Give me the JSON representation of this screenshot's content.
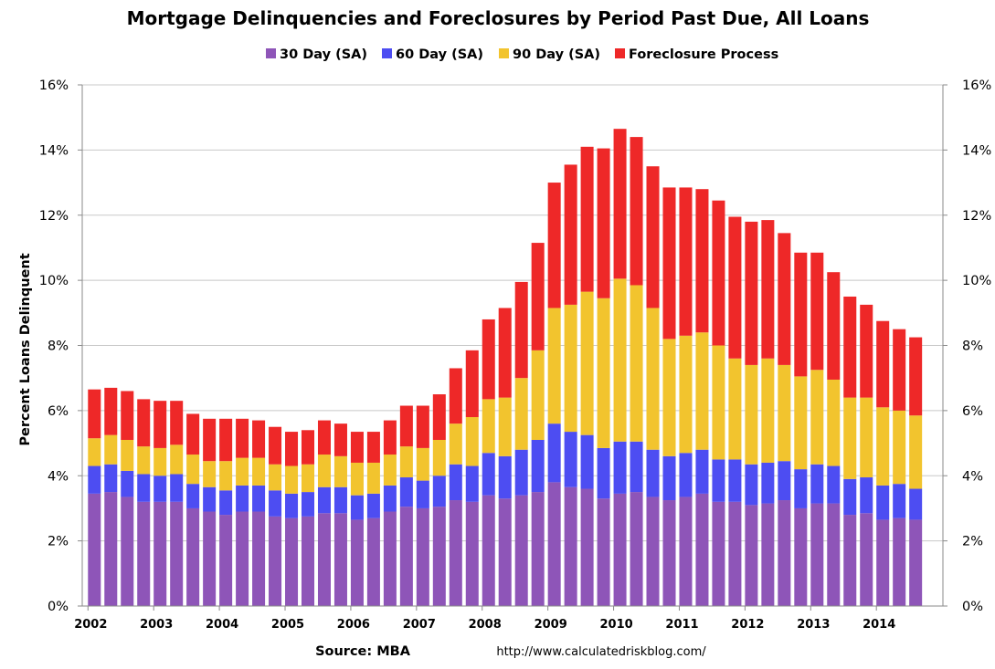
{
  "chart_data": {
    "type": "bar",
    "stacked": true,
    "title": "Mortgage Delinquencies and Foreclosures by Period Past Due, All Loans",
    "ylabel": "Percent Loans Delinquent",
    "xlabel": "",
    "ylim": [
      0,
      16
    ],
    "y_ticks": [
      "0%",
      "2%",
      "4%",
      "6%",
      "8%",
      "10%",
      "12%",
      "14%",
      "16%"
    ],
    "x_ticks": [
      "2002",
      "2003",
      "2004",
      "2005",
      "2006",
      "2007",
      "2008",
      "2009",
      "2010",
      "2011",
      "2012",
      "2013",
      "2014"
    ],
    "grid": true,
    "legend_position": "top",
    "series": [
      {
        "name": "30 Day (SA)",
        "color": "#8e55b8",
        "values": [
          3.45,
          3.5,
          3.35,
          3.2,
          3.2,
          3.2,
          3.0,
          2.9,
          2.8,
          2.9,
          2.9,
          2.75,
          2.7,
          2.75,
          2.85,
          2.85,
          2.65,
          2.7,
          2.9,
          3.05,
          3.0,
          3.05,
          3.25,
          3.2,
          3.4,
          3.3,
          3.4,
          3.5,
          3.8,
          3.65,
          3.6,
          3.3,
          3.45,
          3.5,
          3.35,
          3.25,
          3.35,
          3.45,
          3.2,
          3.2,
          3.1,
          3.15,
          3.25,
          3.0,
          3.15,
          3.15,
          2.8,
          2.85,
          2.65,
          2.7,
          2.65
        ]
      },
      {
        "name": "60 Day (SA)",
        "color": "#4d4df2",
        "values": [
          0.85,
          0.85,
          0.8,
          0.85,
          0.8,
          0.85,
          0.75,
          0.75,
          0.75,
          0.8,
          0.8,
          0.8,
          0.75,
          0.75,
          0.8,
          0.8,
          0.75,
          0.75,
          0.8,
          0.9,
          0.85,
          0.95,
          1.1,
          1.1,
          1.3,
          1.3,
          1.4,
          1.6,
          1.8,
          1.7,
          1.65,
          1.55,
          1.6,
          1.55,
          1.45,
          1.35,
          1.35,
          1.35,
          1.3,
          1.3,
          1.25,
          1.25,
          1.2,
          1.2,
          1.2,
          1.15,
          1.1,
          1.1,
          1.05,
          1.05,
          0.95
        ]
      },
      {
        "name": "90 Day (SA)",
        "color": "#f2c42e",
        "values": [
          0.85,
          0.9,
          0.95,
          0.85,
          0.85,
          0.9,
          0.9,
          0.8,
          0.9,
          0.85,
          0.85,
          0.8,
          0.85,
          0.85,
          1.0,
          0.95,
          1.0,
          0.95,
          0.95,
          0.95,
          1.0,
          1.1,
          1.25,
          1.5,
          1.65,
          1.8,
          2.2,
          2.75,
          3.55,
          3.9,
          4.4,
          4.6,
          5.0,
          4.8,
          4.35,
          3.6,
          3.6,
          3.6,
          3.5,
          3.1,
          3.05,
          3.2,
          2.95,
          2.85,
          2.9,
          2.65,
          2.5,
          2.45,
          2.4,
          2.25,
          2.25
        ]
      },
      {
        "name": "Foreclosure Process",
        "color": "#ee2828",
        "values": [
          1.5,
          1.45,
          1.5,
          1.45,
          1.45,
          1.35,
          1.25,
          1.3,
          1.3,
          1.2,
          1.15,
          1.15,
          1.05,
          1.05,
          1.05,
          1.0,
          0.95,
          0.95,
          1.05,
          1.25,
          1.3,
          1.4,
          1.7,
          2.05,
          2.45,
          2.75,
          2.95,
          3.3,
          3.85,
          4.3,
          4.45,
          4.6,
          4.6,
          4.55,
          4.35,
          4.65,
          4.55,
          4.4,
          4.45,
          4.35,
          4.4,
          4.25,
          4.05,
          3.8,
          3.6,
          3.3,
          3.1,
          2.85,
          2.65,
          2.5,
          2.4
        ]
      }
    ],
    "n_bars": 51,
    "first_period": "2002 Q1"
  },
  "footer": {
    "source": "Source: MBA",
    "url": "http://www.calculatedriskblog.com/"
  }
}
